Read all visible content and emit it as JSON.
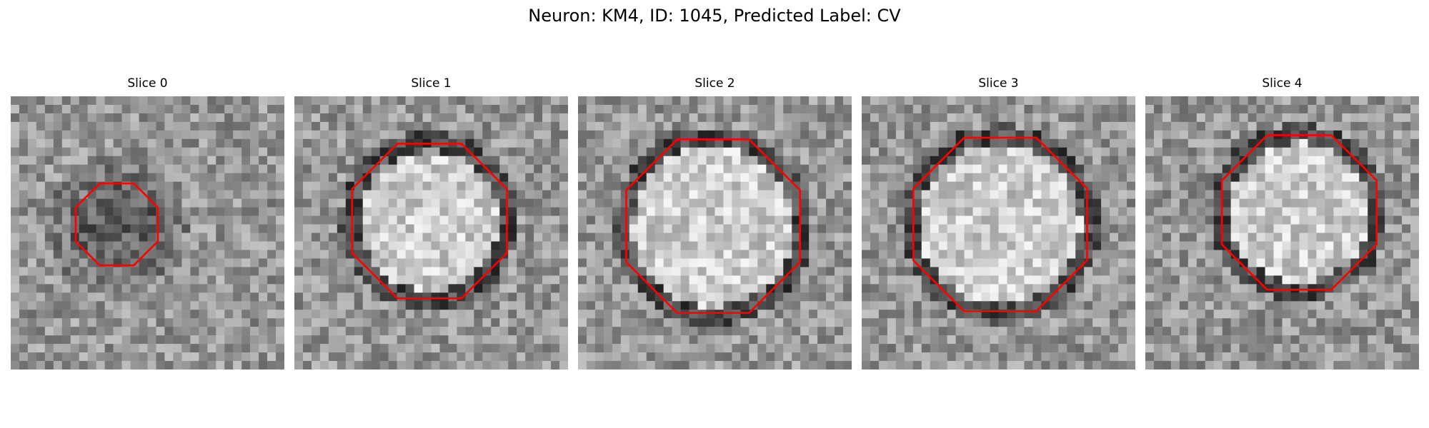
{
  "title": "Neuron: KM4, ID: 1045, Predicted Label: CV",
  "colors": {
    "contour": "#ff0000",
    "background": "#ffffff"
  },
  "colormap": "gray",
  "slices": [
    {
      "label": "Slice 0",
      "contour_size": "small",
      "interior_brightness": "dark"
    },
    {
      "label": "Slice 1",
      "contour_size": "large",
      "interior_brightness": "bright"
    },
    {
      "label": "Slice 2",
      "contour_size": "large",
      "interior_brightness": "bright"
    },
    {
      "label": "Slice 3",
      "contour_size": "large",
      "interior_brightness": "bright"
    },
    {
      "label": "Slice 4",
      "contour_size": "large",
      "interior_brightness": "bright"
    }
  ]
}
